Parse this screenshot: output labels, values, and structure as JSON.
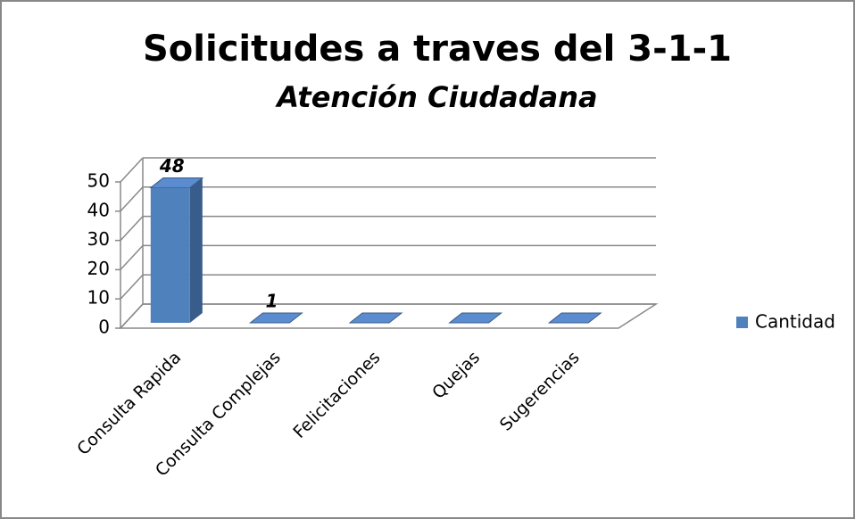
{
  "chart_data": {
    "type": "bar3d",
    "title": "Solicitudes a traves del 3-1-1",
    "subtitle": "Atención Ciudadana",
    "categories": [
      "Consulta Rapida",
      "Consulta Complejas",
      "Felicitaciones",
      "Quejas",
      "Sugerencias"
    ],
    "series": [
      {
        "name": "Cantidad",
        "color": "#4f81bd",
        "values": [
          48,
          1,
          0,
          0,
          0
        ],
        "value_labels": [
          "48",
          "1",
          null,
          null,
          null
        ]
      }
    ],
    "ylim": [
      0,
      50
    ],
    "yticks": [
      0,
      10,
      20,
      30,
      40,
      50
    ],
    "grid": true,
    "legend": "right"
  }
}
